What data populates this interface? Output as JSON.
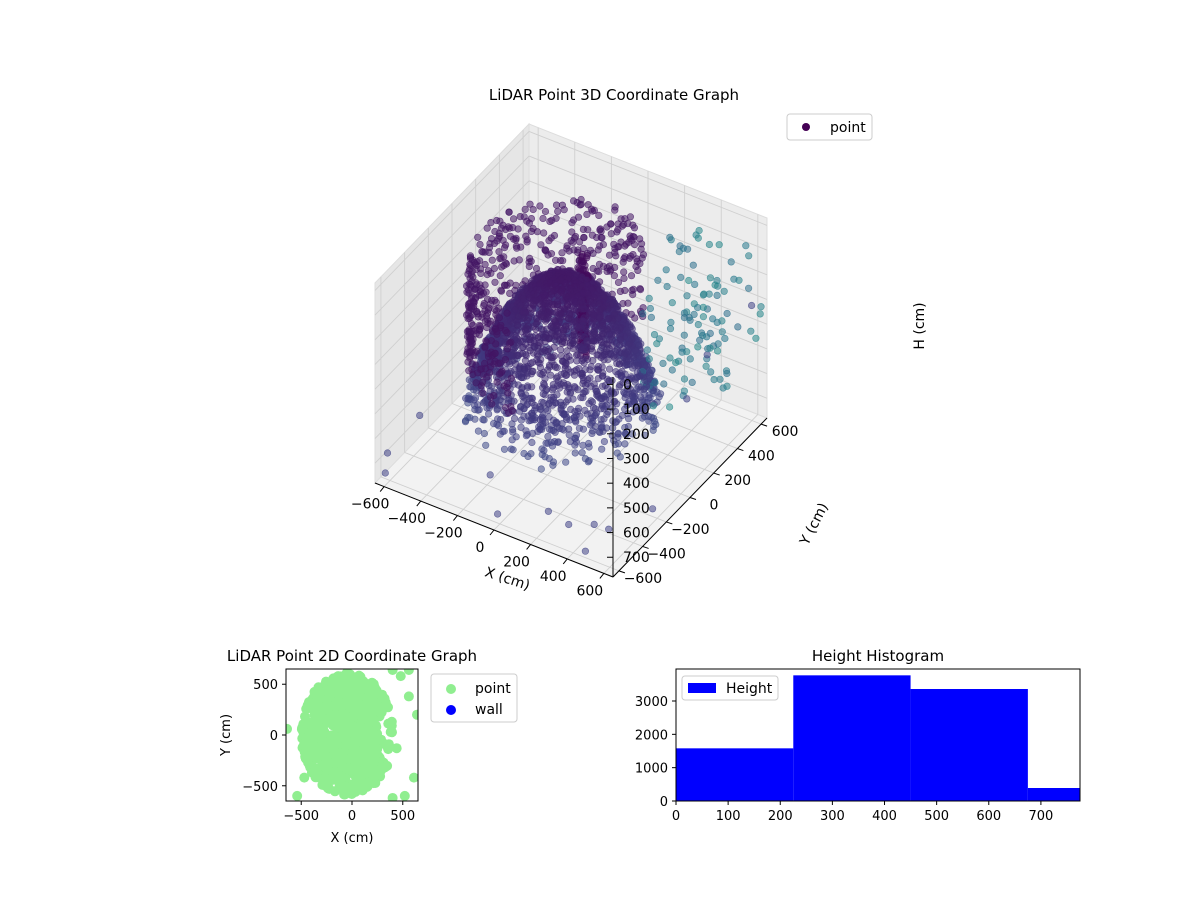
{
  "chart_data": [
    {
      "type": "scatter",
      "title": "LiDAR Point 3D Coordinate Graph",
      "xlabel": "X (cm)",
      "ylabel": "Y (cm)",
      "zlabel": "H (cm)",
      "xlim": [
        -650,
        650
      ],
      "ylim": [
        -650,
        650
      ],
      "zlim": [
        780,
        -30
      ],
      "z_inverted": true,
      "xticks": [
        -600,
        -400,
        -200,
        0,
        200,
        400,
        600
      ],
      "yticks": [
        -600,
        -400,
        -200,
        0,
        200,
        400,
        600
      ],
      "zticks": [
        0,
        100,
        200,
        300,
        400,
        500,
        600,
        700
      ],
      "legend": [
        "point"
      ],
      "legend_position": "top-right",
      "grid": true,
      "colormap": "viridis",
      "marker_alpha": 0.55,
      "colors": {
        "low": "#440154",
        "mid": "#3b528b",
        "high": "#5ec962"
      },
      "series": [
        {
          "name": "point",
          "description_points": "dome-shaped cloud of points, approximate reconstruction",
          "dome": {
            "center": [
              -60,
              20
            ],
            "radius": 420,
            "top_h": 30,
            "bottom_h": 600
          },
          "wall_columns": {
            "x": [
              300,
              380,
              460,
              540,
              620
            ],
            "y_from": 100,
            "y_to": 650,
            "h_from": 0,
            "h_to": 560
          },
          "stray_points": [
            [
              -640,
              -560,
              700
            ],
            [
              -600,
              -350,
              640
            ],
            [
              -450,
              80,
              730
            ],
            [
              -300,
              -100,
              740
            ],
            [
              -150,
              -450,
              700
            ],
            [
              200,
              -500,
              720
            ],
            [
              450,
              -500,
              700
            ],
            [
              550,
              300,
              380
            ],
            [
              620,
              -640,
              600
            ],
            [
              640,
              -300,
              680
            ],
            [
              600,
              50,
              420
            ],
            [
              650,
              520,
              260
            ],
            [
              -520,
              420,
              520
            ],
            [
              480,
              -620,
              740
            ],
            [
              0,
              -620,
              730
            ],
            [
              -600,
              -640,
              730
            ],
            [
              100,
              400,
              700
            ],
            [
              350,
              -560,
              700
            ]
          ]
        }
      ]
    },
    {
      "type": "scatter",
      "title": "LiDAR Point 2D Coordinate Graph",
      "xlabel": "X (cm)",
      "ylabel": "Y (cm)",
      "xlim": [
        -650,
        650
      ],
      "ylim": [
        -650,
        650
      ],
      "xticks": [
        -500,
        0,
        500
      ],
      "yticks": [
        -500,
        0,
        500
      ],
      "legend": [
        "point",
        "wall"
      ],
      "legend_position": "outside-right",
      "colors": {
        "point": "#90ee90",
        "wall": "#0000ff"
      },
      "series": [
        {
          "name": "point",
          "blob": {
            "center": [
              -40,
              10
            ],
            "rx": 460,
            "ry": 600
          },
          "extra_points": [
            [
              -640,
              60
            ],
            [
              -540,
              -600
            ],
            [
              -470,
              -420
            ],
            [
              400,
              -620
            ],
            [
              520,
              -600
            ],
            [
              480,
              580
            ],
            [
              560,
              640
            ],
            [
              400,
              640
            ],
            [
              560,
              380
            ],
            [
              610,
              -420
            ],
            [
              640,
              200
            ],
            [
              350,
              -120
            ],
            [
              440,
              -130
            ]
          ]
        },
        {
          "name": "wall",
          "points": []
        }
      ]
    },
    {
      "type": "bar",
      "subtype": "histogram",
      "title": "Height Histogram",
      "legend": [
        "Height"
      ],
      "legend_position": "top-left",
      "bin_edges": [
        0,
        225,
        450,
        675,
        780
      ],
      "values": [
        1580,
        3770,
        3360,
        390
      ],
      "xlim": [
        0,
        775
      ],
      "ylim": [
        0,
        3960
      ],
      "xticks": [
        0,
        100,
        200,
        300,
        400,
        500,
        600,
        700
      ],
      "yticks": [
        0,
        1000,
        2000,
        3000
      ],
      "color": "#0000ff",
      "series": [
        {
          "name": "Height",
          "values": [
            1580,
            3770,
            3360,
            390
          ]
        }
      ]
    }
  ]
}
